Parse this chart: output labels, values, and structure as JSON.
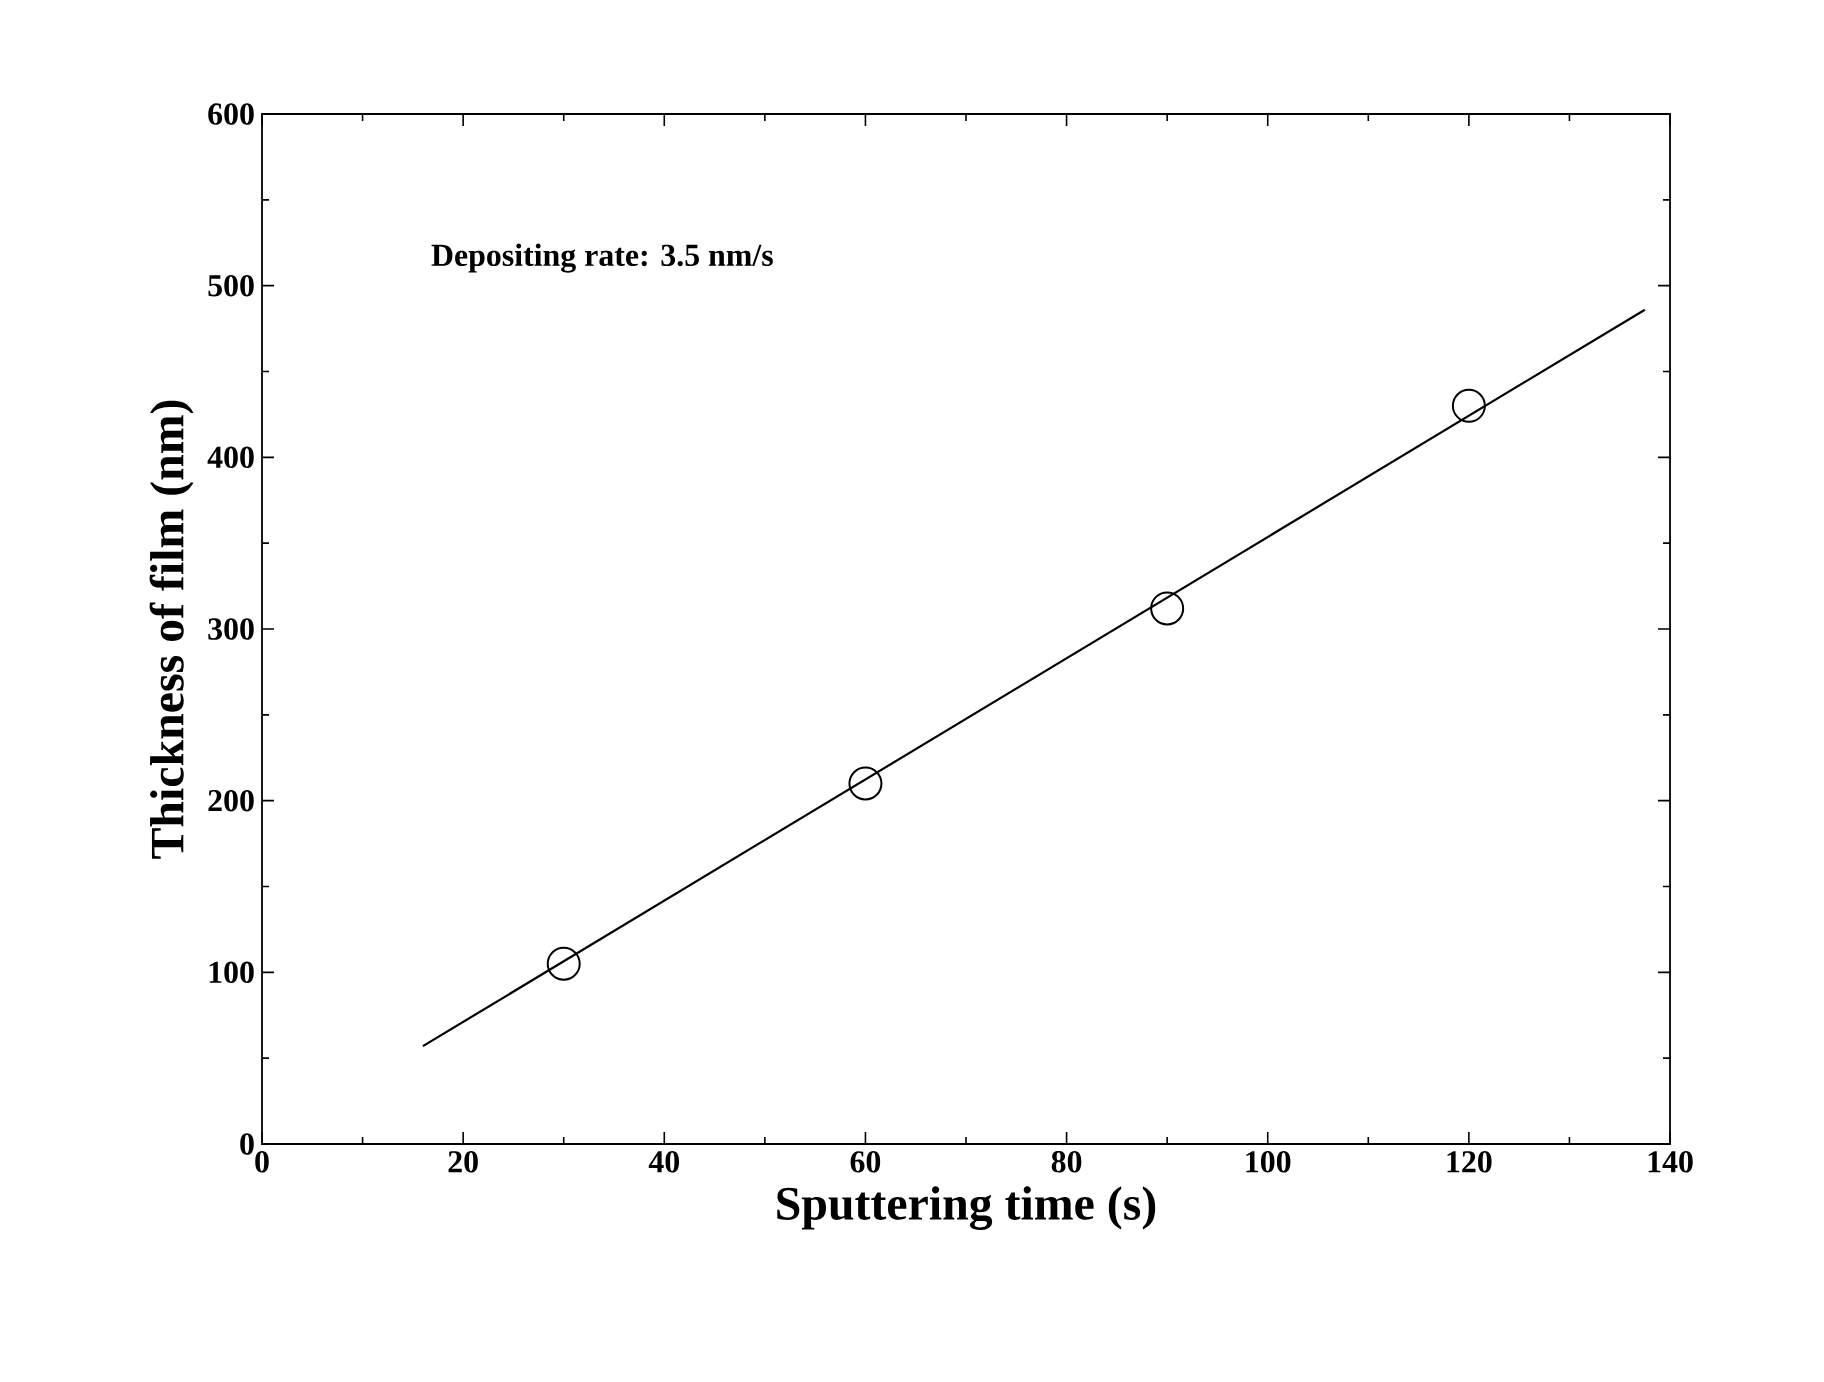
{
  "chart_data": {
    "type": "scatter",
    "xlabel": "Sputtering time (s)",
    "ylabel": "Thickness of film (nm)",
    "annotations": [
      "Depositing rate: 3.5 nm/s"
    ],
    "xlim": [
      0,
      140
    ],
    "ylim": [
      0,
      600
    ],
    "xticks": [
      0,
      20,
      40,
      60,
      80,
      100,
      120,
      140
    ],
    "yticks": [
      0,
      100,
      200,
      300,
      400,
      500,
      600
    ],
    "marker": "circle",
    "series": [
      {
        "color": "#000000",
        "x": [
          30,
          60,
          90,
          120
        ],
        "values": [
          105,
          210,
          312,
          430
        ]
      },
      {
        "type": "line",
        "marker": "none",
        "color": "#000000",
        "x": [
          16,
          137.5
        ],
        "values": [
          57,
          486
        ]
      }
    ]
  }
}
